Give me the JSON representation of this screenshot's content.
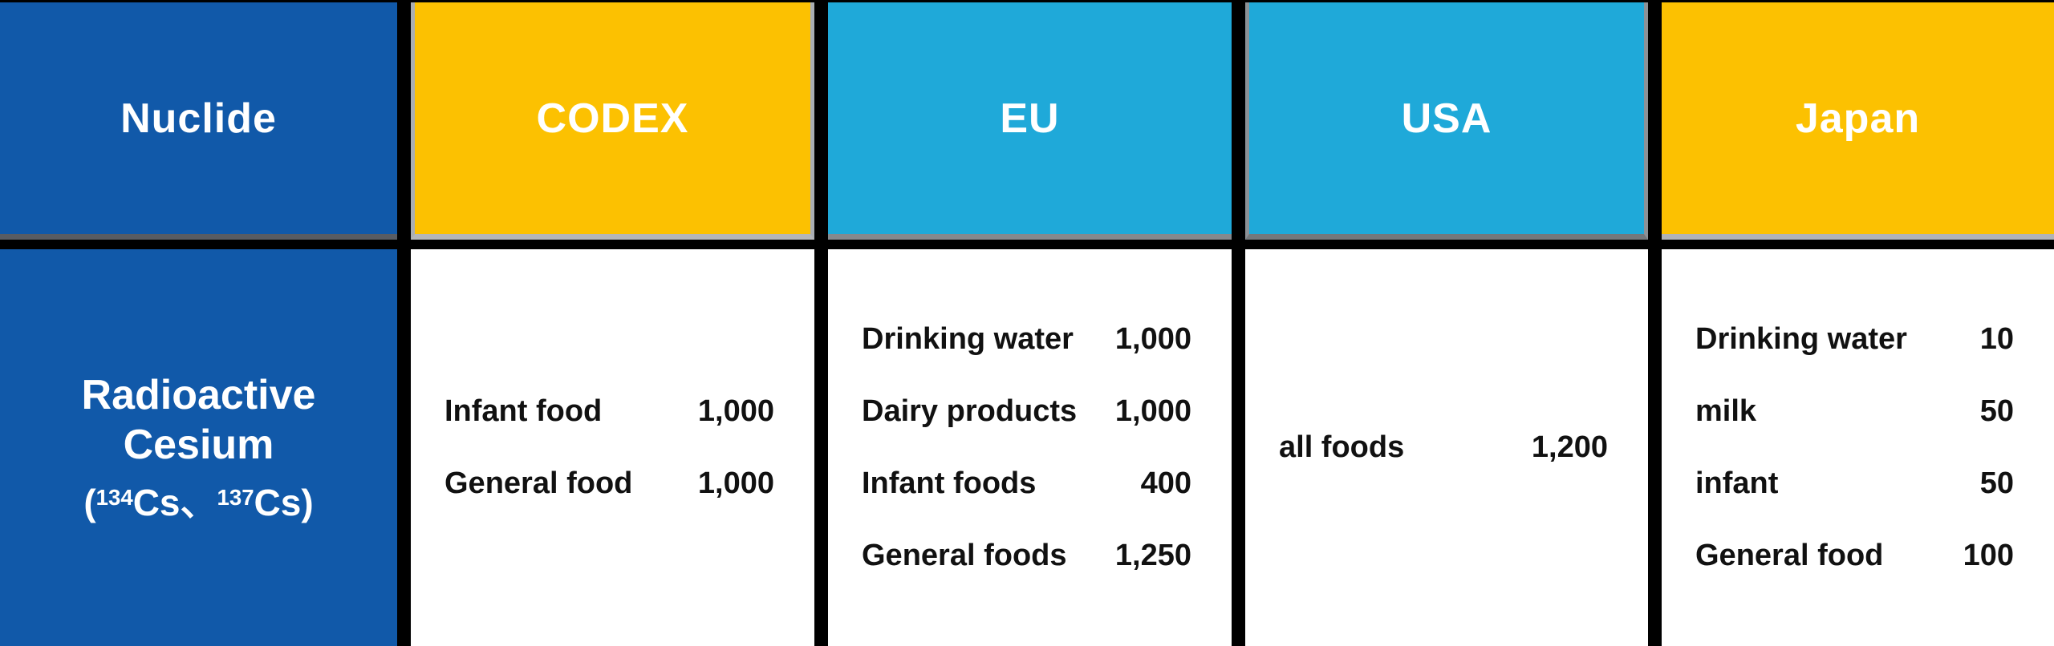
{
  "colors": {
    "header_blue": "#1159A9",
    "header_yellow": "#FCC101",
    "header_cyan": "#1FA9D9",
    "grid_black": "#000000",
    "body_white": "#FFFFFF",
    "body_text": "#111111",
    "header_edge_gray": "#AAAEB3"
  },
  "header": {
    "nuclide": "Nuclide",
    "codex": "CODEX",
    "eu": "EU",
    "usa": "USA",
    "japan": "Japan"
  },
  "nuclide": {
    "line1": "Radioactive Cesium",
    "line2": {
      "open": "(",
      "sup_a": "134",
      "text_a": "Cs、",
      "sup_b": "137",
      "text_b": "Cs)"
    }
  },
  "codex_rows": [
    {
      "label": "Infant food",
      "value": "1,000"
    },
    {
      "label": "General food",
      "value": "1,000"
    }
  ],
  "eu_rows": [
    {
      "label": "Drinking water",
      "value": "1,000"
    },
    {
      "label": "Dairy products",
      "value": "1,000"
    },
    {
      "label": "Infant foods",
      "value": "400"
    },
    {
      "label": "General foods",
      "value": "1,250"
    }
  ],
  "usa_rows": [
    {
      "label": "all foods",
      "value": "1,200"
    }
  ],
  "japan_rows": [
    {
      "label": "Drinking water",
      "value": "10"
    },
    {
      "label": "milk",
      "value": "50"
    },
    {
      "label": "infant",
      "value": "50"
    },
    {
      "label": "General food",
      "value": "100"
    }
  ],
  "chart_data": {
    "type": "table",
    "columns": [
      "Nuclide",
      "CODEX",
      "EU",
      "USA",
      "Japan"
    ],
    "row_label": "Radioactive Cesium (134Cs、137Cs)",
    "values": {
      "CODEX": [
        {
          "food": "Infant food",
          "limit": 1000
        },
        {
          "food": "General food",
          "limit": 1000
        }
      ],
      "EU": [
        {
          "food": "Drinking water",
          "limit": 1000
        },
        {
          "food": "Dairy products",
          "limit": 1000
        },
        {
          "food": "Infant foods",
          "limit": 400
        },
        {
          "food": "General foods",
          "limit": 1250
        }
      ],
      "USA": [
        {
          "food": "all foods",
          "limit": 1200
        }
      ],
      "Japan": [
        {
          "food": "Drinking water",
          "limit": 10
        },
        {
          "food": "milk",
          "limit": 50
        },
        {
          "food": "infant",
          "limit": 50
        },
        {
          "food": "General food",
          "limit": 100
        }
      ]
    }
  }
}
